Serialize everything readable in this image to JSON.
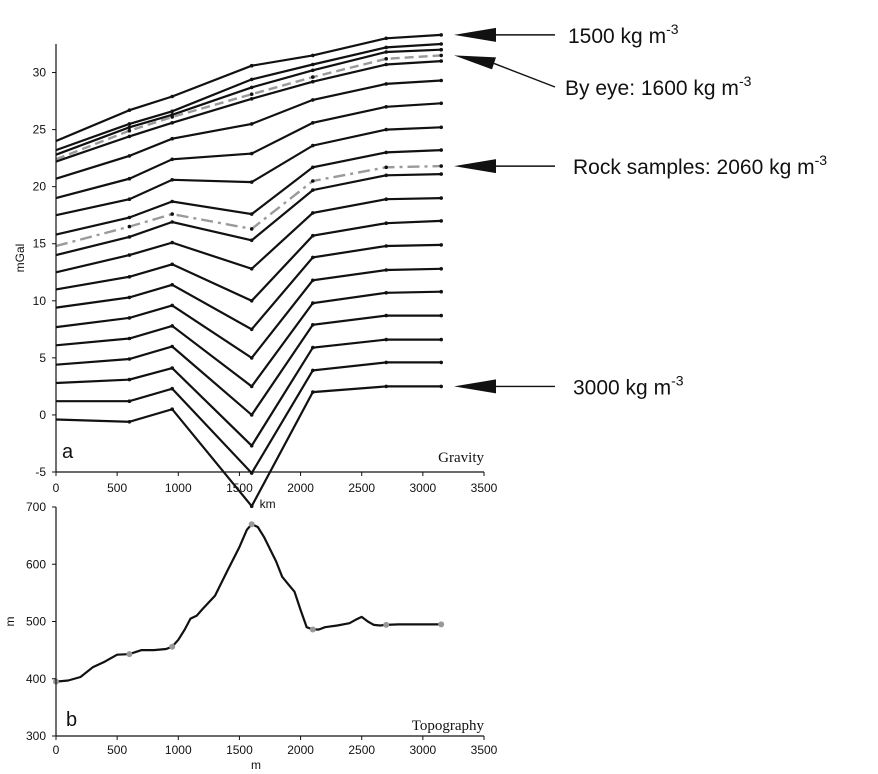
{
  "chart_data": [
    {
      "type": "line",
      "panel_letter": "a",
      "title": "Gravity",
      "xlabel": "km",
      "ylabel": "mGal",
      "xlim": [
        0,
        3500
      ],
      "ylim": [
        -5,
        32.5
      ],
      "xticks": [
        0,
        500,
        1000,
        1500,
        2000,
        2500,
        3000,
        3500
      ],
      "yticks": [
        -5,
        0,
        5,
        10,
        15,
        20,
        25,
        30
      ],
      "x": [
        0,
        600,
        950,
        1600,
        2100,
        2700,
        3150
      ],
      "series": [
        {
          "style": "solid",
          "values": [
            24.0,
            26.7,
            27.9,
            30.6,
            31.5,
            33.0,
            33.3
          ]
        },
        {
          "style": "solid",
          "values": [
            23.2,
            25.5,
            26.6,
            29.4,
            30.7,
            32.2,
            32.5
          ]
        },
        {
          "style": "solid",
          "values": [
            22.8,
            25.2,
            26.3,
            28.7,
            30.2,
            31.8,
            32.0
          ]
        },
        {
          "style": "solid",
          "values": [
            22.2,
            24.4,
            25.6,
            27.7,
            29.2,
            30.7,
            31.0
          ]
        },
        {
          "style": "solid",
          "values": [
            20.7,
            22.7,
            24.2,
            25.5,
            27.6,
            29.0,
            29.3
          ]
        },
        {
          "style": "solid",
          "values": [
            19.0,
            20.7,
            22.4,
            22.9,
            25.6,
            27.0,
            27.3
          ]
        },
        {
          "style": "solid",
          "values": [
            17.5,
            18.9,
            20.6,
            20.4,
            23.6,
            25.0,
            25.2
          ]
        },
        {
          "style": "solid",
          "values": [
            15.8,
            17.3,
            18.7,
            17.6,
            21.7,
            23.0,
            23.2
          ]
        },
        {
          "style": "solid",
          "values": [
            14.0,
            15.6,
            16.9,
            15.3,
            19.7,
            21.0,
            21.1
          ]
        },
        {
          "style": "solid",
          "values": [
            12.5,
            14.0,
            15.1,
            12.8,
            17.7,
            18.9,
            19.0
          ]
        },
        {
          "style": "solid",
          "values": [
            11.0,
            12.1,
            13.2,
            10.0,
            15.7,
            16.8,
            17.0
          ]
        },
        {
          "style": "solid",
          "values": [
            9.4,
            10.3,
            11.4,
            7.5,
            13.8,
            14.8,
            14.9
          ]
        },
        {
          "style": "solid",
          "values": [
            7.7,
            8.5,
            9.6,
            5.0,
            11.8,
            12.7,
            12.8
          ]
        },
        {
          "style": "solid",
          "values": [
            6.1,
            6.7,
            7.8,
            2.5,
            9.8,
            10.7,
            10.8
          ]
        },
        {
          "style": "solid",
          "values": [
            4.4,
            4.9,
            6.0,
            0.0,
            7.9,
            8.7,
            8.7
          ]
        },
        {
          "style": "solid",
          "values": [
            2.8,
            3.1,
            4.1,
            -2.7,
            5.9,
            6.6,
            6.6
          ]
        },
        {
          "style": "solid",
          "values": [
            1.2,
            1.2,
            2.3,
            -5.1,
            3.9,
            4.6,
            4.6
          ]
        },
        {
          "style": "solid",
          "values": [
            -0.4,
            -0.6,
            0.5,
            -8.0,
            2.0,
            2.5,
            2.5
          ]
        },
        {
          "style": "dashed",
          "values": [
            22.4,
            24.9,
            26.1,
            28.1,
            29.6,
            31.2,
            31.5
          ]
        },
        {
          "style": "dashdot",
          "values": [
            14.8,
            16.5,
            17.6,
            16.3,
            20.5,
            21.7,
            21.8
          ]
        }
      ],
      "annotations": [
        {
          "text": "1500 kg m",
          "sup": "-3",
          "points_to_y": 33.3
        },
        {
          "text": "By eye: 1600 kg m",
          "sup": "-3",
          "points_to_y": 31.5
        },
        {
          "text": "Rock samples: 2060 kg m",
          "sup": "-3",
          "points_to_y": 21.8
        },
        {
          "text": "3000 kg m",
          "sup": "-3",
          "points_to_y": 2.5
        }
      ],
      "grid": false,
      "legend": "none"
    },
    {
      "type": "line",
      "panel_letter": "b",
      "title": "Topography",
      "xlabel": "m",
      "ylabel": "m",
      "xlim": [
        0,
        3500
      ],
      "ylim": [
        300,
        700
      ],
      "xticks": [
        0,
        500,
        1000,
        1500,
        2000,
        2500,
        3000,
        3500
      ],
      "yticks": [
        300,
        400,
        500,
        600,
        700
      ],
      "x": [
        0,
        100,
        200,
        300,
        400,
        500,
        600,
        700,
        800,
        900,
        950,
        1000,
        1050,
        1100,
        1150,
        1200,
        1300,
        1400,
        1500,
        1560,
        1600,
        1650,
        1700,
        1800,
        1850,
        1900,
        1950,
        2000,
        2050,
        2100,
        2150,
        2200,
        2300,
        2400,
        2450,
        2500,
        2550,
        2600,
        2650,
        2700,
        2800,
        2900,
        3000,
        3100,
        3150
      ],
      "values": [
        395,
        397,
        403,
        420,
        430,
        442,
        443,
        450,
        450,
        452,
        456,
        468,
        485,
        505,
        510,
        522,
        545,
        588,
        630,
        660,
        670,
        665,
        648,
        605,
        578,
        565,
        552,
        520,
        490,
        486,
        486,
        490,
        493,
        497,
        503,
        508,
        500,
        494,
        493,
        494,
        495,
        495,
        495,
        495,
        495
      ],
      "markers_x": [
        0,
        600,
        950,
        1600,
        2100,
        2700,
        3150
      ],
      "grid": false,
      "legend": "none"
    }
  ]
}
